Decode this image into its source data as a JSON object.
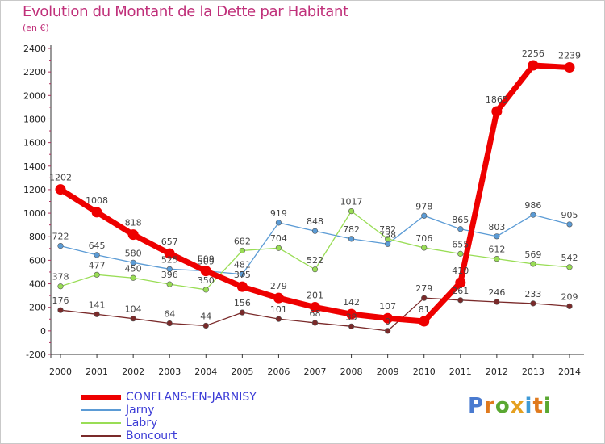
{
  "title": "Evolution du Montant de la Dette par Habitant",
  "subtitle": "(en €)",
  "logo_text": "Proxiti",
  "chart_data": {
    "type": "line",
    "title": "Evolution du Montant de la Dette par Habitant",
    "subtitle": "(en €)",
    "xlabel": "",
    "ylabel": "",
    "x": [
      "2000",
      "2001",
      "2002",
      "2003",
      "2004",
      "2005",
      "2006",
      "2007",
      "2008",
      "2009",
      "2010",
      "2011",
      "2012",
      "2013",
      "2014"
    ],
    "ylim": [
      -200,
      2400
    ],
    "yticks": [
      -200,
      0,
      200,
      400,
      600,
      800,
      1000,
      1200,
      1400,
      1600,
      1800,
      2000,
      2200,
      2400
    ],
    "grid": false,
    "legend_position": "bottom-left",
    "series": [
      {
        "name": "CONFLANS-EN-JARNISY",
        "color": "#ee0000",
        "emphasis": true,
        "values": [
          1202,
          1008,
          818,
          657,
          509,
          375,
          279,
          201,
          142,
          107,
          81,
          410,
          1865,
          2256,
          2239
        ]
      },
      {
        "name": "Jarny",
        "color": "#5b9bd5",
        "values": [
          722,
          645,
          580,
          525,
          509,
          481,
          919,
          848,
          782,
          738,
          978,
          865,
          803,
          986,
          905
        ]
      },
      {
        "name": "Labry",
        "color": "#99dd55",
        "values": [
          378,
          477,
          450,
          396,
          350,
          682,
          704,
          522,
          1017,
          782,
          706,
          655,
          612,
          569,
          542
        ]
      },
      {
        "name": "Boncourt",
        "color": "#7a2a2a",
        "values": [
          176,
          141,
          104,
          64,
          44,
          156,
          101,
          68,
          38,
          0,
          279,
          261,
          246,
          233,
          209
        ]
      }
    ]
  }
}
